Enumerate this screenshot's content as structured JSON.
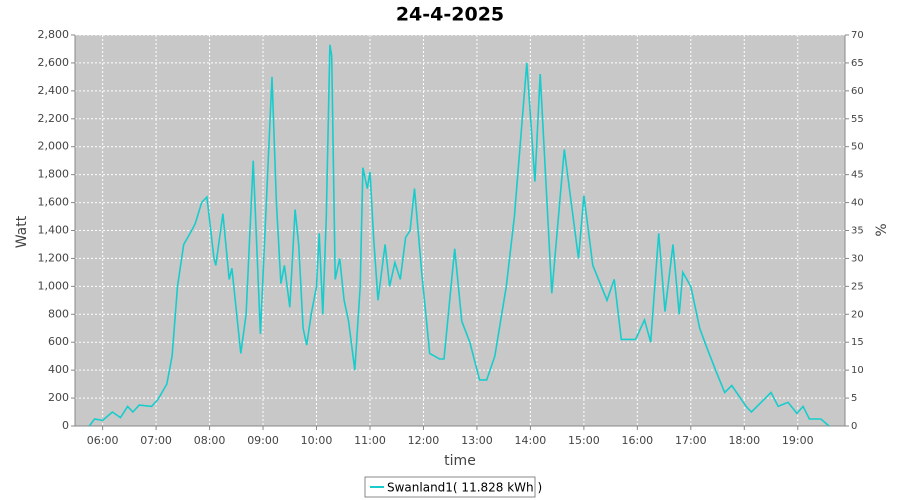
{
  "chart_data": {
    "type": "line",
    "title": "24-4-2025",
    "x_label": "time",
    "y_label": "Watt",
    "y2_label": "%",
    "grid": true,
    "legend": "bottom",
    "xlim": [
      "05:29",
      "19:53"
    ],
    "xticks": [
      "06:00",
      "07:00",
      "08:00",
      "09:00",
      "10:00",
      "11:00",
      "12:00",
      "13:00",
      "14:00",
      "15:00",
      "16:00",
      "17:00",
      "18:00",
      "19:00"
    ],
    "ylim": [
      0,
      2800
    ],
    "yticks": [
      0,
      200,
      400,
      600,
      800,
      {
        "value": 1000,
        "label": "1,000"
      },
      {
        "value": 1200,
        "label": "1,200"
      },
      {
        "value": 1400,
        "label": "1,400"
      },
      {
        "value": 1600,
        "label": "1,600"
      },
      {
        "value": 1800,
        "label": "1,800"
      },
      {
        "value": 2000,
        "label": "2,000"
      },
      {
        "value": 2200,
        "label": "2,200"
      },
      {
        "value": 2400,
        "label": "2,400"
      },
      {
        "value": 2600,
        "label": "2,600"
      },
      {
        "value": 2800,
        "label": "2,800"
      }
    ],
    "y2lim": [
      0,
      70
    ],
    "y2ticks": [
      0,
      5,
      10,
      15,
      20,
      25,
      30,
      35,
      40,
      45,
      50,
      55,
      60,
      65,
      70
    ],
    "x": [
      "05:45",
      "05:51",
      "06:00",
      "06:11",
      "06:20",
      "06:28",
      "06:34",
      "06:41",
      "06:55",
      "07:02",
      "07:12",
      "07:18",
      "07:24",
      "07:31",
      "07:40",
      "07:44",
      "07:51",
      "07:57",
      "08:05",
      "08:07",
      "08:15",
      "08:22",
      "08:25",
      "08:35",
      "08:41",
      "08:49",
      "08:57",
      "09:03",
      "09:10",
      "09:15",
      "09:20",
      "09:24",
      "09:30",
      "09:36",
      "09:40",
      "09:45",
      "09:49",
      "09:54",
      "10:00",
      "10:03",
      "10:07",
      "10:11",
      "10:15",
      "10:17",
      "10:21",
      "10:26",
      "10:31",
      "10:36",
      "10:43",
      "10:49",
      "10:52",
      "10:57",
      "11:00",
      "11:04",
      "11:09",
      "11:17",
      "11:22",
      "11:28",
      "11:34",
      "11:40",
      "11:45",
      "11:50",
      "11:58",
      "12:07",
      "12:18",
      "12:23",
      "12:35",
      "12:43",
      "12:52",
      "13:03",
      "13:11",
      "13:20",
      "13:33",
      "13:42",
      "13:56",
      "14:05",
      "14:11",
      "14:24",
      "14:38",
      "14:54",
      "15:00",
      "15:10",
      "15:26",
      "15:34",
      "15:42",
      "15:58",
      "16:08",
      "16:15",
      "16:24",
      "16:31",
      "16:40",
      "16:47",
      "16:51",
      "17:00",
      "17:10",
      "17:18",
      "17:29",
      "17:38",
      "17:46",
      "18:02",
      "18:08",
      "18:19",
      "18:30",
      "18:38",
      "18:49",
      "18:59",
      "19:06",
      "19:13",
      "19:26",
      "19:35"
    ],
    "series": [
      {
        "name": "Swanland1( 11.828 kWh )",
        "color": "#19cccc",
        "values": [
          0,
          50,
          40,
          100,
          60,
          140,
          100,
          150,
          140,
          190,
          300,
          500,
          1000,
          1300,
          1400,
          1450,
          1600,
          1640,
          1200,
          1150,
          1520,
          1050,
          1130,
          520,
          800,
          1900,
          660,
          1500,
          2500,
          1600,
          1020,
          1150,
          850,
          1550,
          1300,
          700,
          580,
          800,
          1000,
          1380,
          800,
          1500,
          2730,
          2650,
          1050,
          1200,
          900,
          750,
          400,
          1000,
          1850,
          1700,
          1820,
          1350,
          900,
          1300,
          1000,
          1170,
          1050,
          1350,
          1400,
          1700,
          1100,
          520,
          480,
          480,
          1270,
          750,
          600,
          330,
          330,
          500,
          1000,
          1500,
          2600,
          1750,
          2520,
          950,
          1980,
          1200,
          1650,
          1150,
          900,
          1050,
          620,
          620,
          760,
          600,
          1380,
          820,
          1300,
          800,
          1100,
          1000,
          700,
          560,
          380,
          240,
          290,
          140,
          100,
          170,
          240,
          140,
          170,
          90,
          140,
          50,
          50,
          0
        ]
      }
    ]
  }
}
